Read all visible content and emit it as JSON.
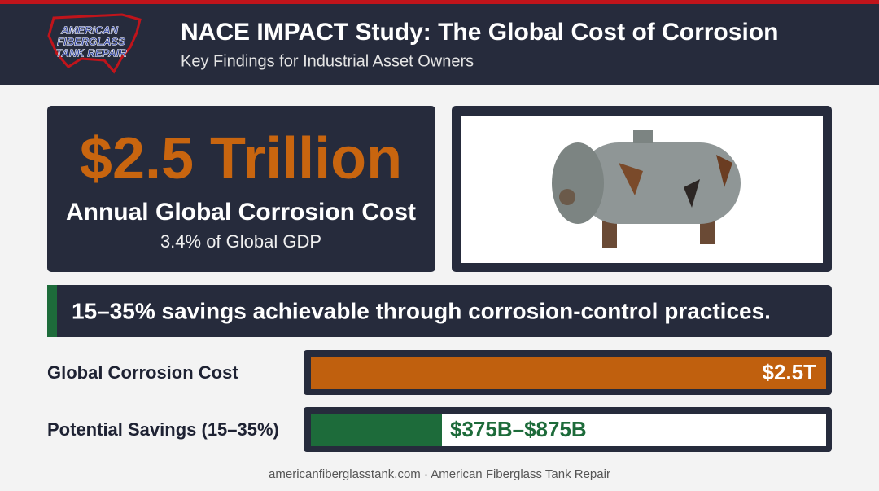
{
  "header": {
    "logo": [
      "AMERICAN",
      "FIBERGLASS",
      "TANK REPAIR"
    ],
    "title": "NACE IMPACT Study: The Global Cost of Corrosion",
    "subtitle": "Key Findings for Industrial Asset Owners"
  },
  "headline": {
    "value": "$2.5 Trillion",
    "label": "Annual Global Corrosion Cost",
    "note": "3.4% of Global GDP"
  },
  "banner": "15–35% savings achievable through corrosion-control practices.",
  "comparison": [
    {
      "label": "Global Corrosion Cost",
      "value_label": "$2.5T"
    },
    {
      "label": "Potential Savings (15–35%)",
      "value_label": "$375B–$875B"
    }
  ],
  "footer": "americanfiberglasstank.com · American Fiberglass Tank Repair"
}
